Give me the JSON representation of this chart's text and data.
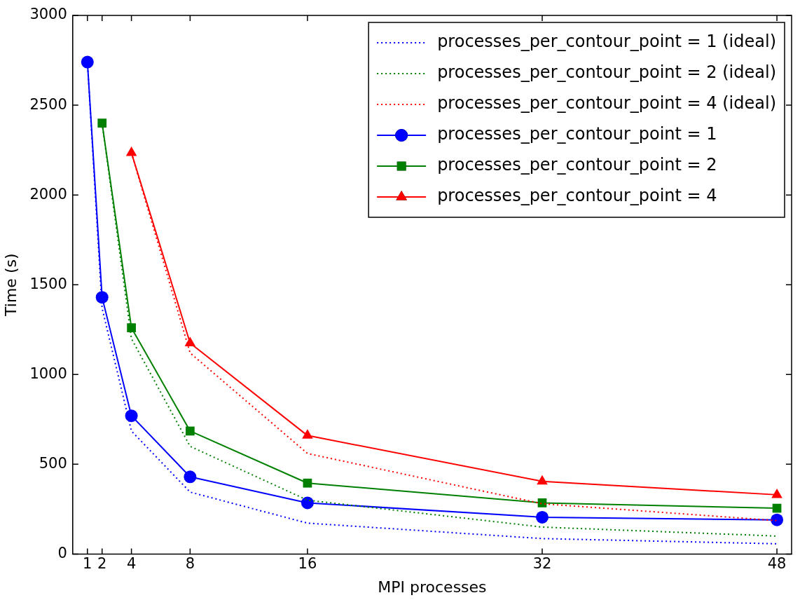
{
  "chart_data": {
    "type": "line",
    "xlabel": "MPI processes",
    "ylabel": "Time (s)",
    "xlim": [
      0,
      49
    ],
    "xticks": [
      1,
      2,
      4,
      8,
      16,
      32,
      48
    ],
    "ylim": [
      0,
      3000
    ],
    "yticks": [
      0,
      500,
      1000,
      1500,
      2000,
      2500,
      3000
    ],
    "grid": false,
    "legend": "top right",
    "series": [
      {
        "name": "processes_per_contour_point = 1 (ideal)",
        "color": "#0000ff",
        "line_style": "dotted",
        "marker": "none",
        "x": [
          1,
          2,
          4,
          8,
          16,
          32,
          48
        ],
        "values": [
          2740,
          1370,
          685,
          345,
          172,
          86,
          57
        ]
      },
      {
        "name": "processes_per_contour_point = 2 (ideal)",
        "color": "#008000",
        "line_style": "dotted",
        "marker": "none",
        "x": [
          2,
          4,
          8,
          16,
          32,
          48
        ],
        "values": [
          2400,
          1200,
          600,
          300,
          150,
          100
        ]
      },
      {
        "name": "processes_per_contour_point = 4 (ideal)",
        "color": "#ff0000",
        "line_style": "dotted",
        "marker": "none",
        "x": [
          4,
          8,
          16,
          32,
          48
        ],
        "values": [
          2235,
          1120,
          560,
          280,
          186
        ]
      },
      {
        "name": "processes_per_contour_point = 1",
        "color": "#0000ff",
        "line_style": "solid",
        "marker": "circle",
        "x": [
          1,
          2,
          4,
          8,
          16,
          32,
          48
        ],
        "values": [
          2740,
          1430,
          770,
          430,
          285,
          205,
          190
        ]
      },
      {
        "name": "processes_per_contour_point = 2",
        "color": "#008000",
        "line_style": "solid",
        "marker": "square",
        "x": [
          2,
          4,
          8,
          16,
          32,
          48
        ],
        "values": [
          2400,
          1260,
          685,
          395,
          285,
          255
        ]
      },
      {
        "name": "processes_per_contour_point = 4",
        "color": "#ff0000",
        "line_style": "solid",
        "marker": "triangle",
        "x": [
          4,
          8,
          16,
          32,
          48
        ],
        "values": [
          2235,
          1175,
          660,
          405,
          330
        ]
      }
    ]
  }
}
